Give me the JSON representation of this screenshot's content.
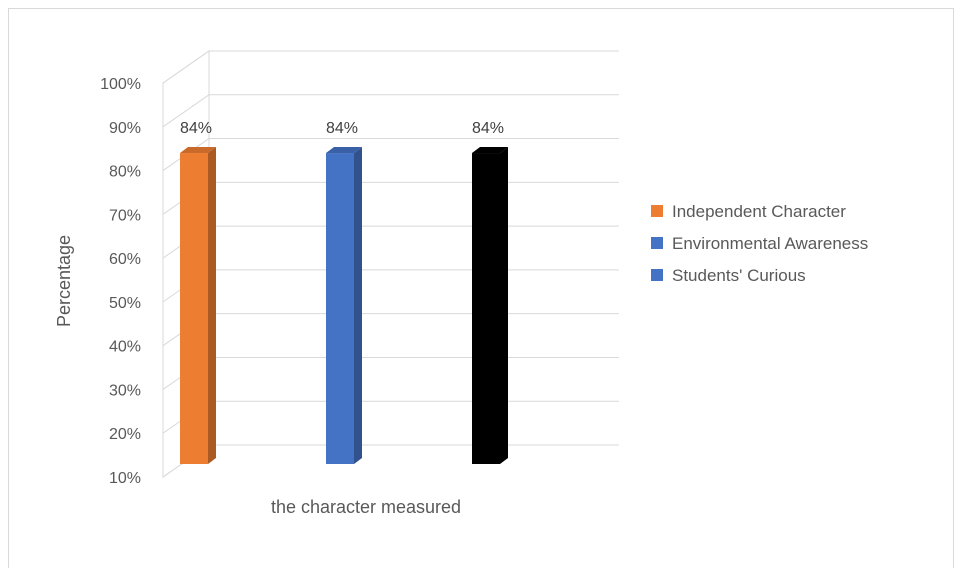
{
  "chart_data": {
    "type": "bar",
    "categories": [
      ""
    ],
    "series": [
      {
        "name": "Independent Character",
        "values": [
          84
        ],
        "color": "#ED7D31"
      },
      {
        "name": "Environmental Awareness",
        "values": [
          84
        ],
        "color": "#4472C4"
      },
      {
        "name": "Students' Curious",
        "values": [
          84
        ],
        "color": "#000000"
      }
    ],
    "data_labels": [
      "84%",
      "84%",
      "84%"
    ],
    "legend_swatch_colors": [
      "#ED7D31",
      "#4472C4",
      "#4472C4"
    ],
    "xlabel": "the character measured",
    "ylabel": "Percentage",
    "ylim": [
      10,
      100
    ],
    "yticks": [
      "10%",
      "20%",
      "30%",
      "40%",
      "50%",
      "60%",
      "70%",
      "80%",
      "90%",
      "100%"
    ],
    "style": "3d-column",
    "grid": true,
    "legend_position": "right"
  }
}
